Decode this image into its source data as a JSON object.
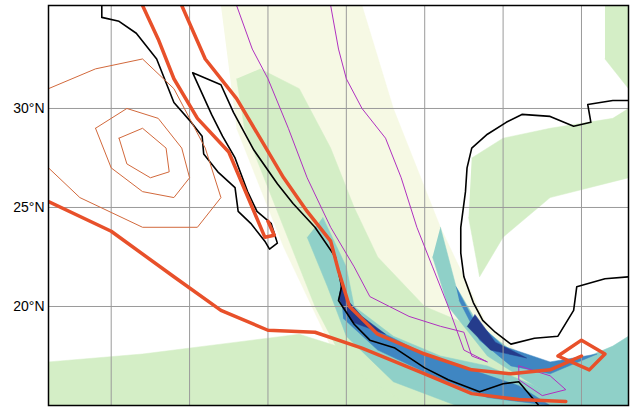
{
  "chart_data": {
    "type": "map",
    "xlim": [
      -124,
      -87
    ],
    "ylim": [
      15,
      35.2
    ],
    "xticks": [
      -120,
      -115,
      -110,
      -105,
      -100,
      -95,
      -90
    ],
    "yticks": [
      {
        "value": 20,
        "label": "20°N"
      },
      {
        "value": 25,
        "label": "25°N"
      },
      {
        "value": 30,
        "label": "30°N"
      }
    ],
    "grid": true,
    "tick_labels": "y",
    "shading": [
      {
        "color": "#f6f9e4",
        "points": [
          [
            -113,
            35.2
          ],
          [
            -104,
            35.2
          ],
          [
            -102,
            30
          ],
          [
            -99,
            24
          ],
          [
            -96,
            19
          ],
          [
            -93,
            17
          ],
          [
            -90,
            15
          ],
          [
            -100,
            15
          ],
          [
            -106,
            18
          ],
          [
            -109,
            23
          ],
          [
            -112,
            29
          ]
        ]
      },
      {
        "color": "#d4eec6",
        "points": [
          [
            -124,
            15
          ],
          [
            -124,
            17.2
          ],
          [
            -118,
            17.6
          ],
          [
            -112,
            18.2
          ],
          [
            -108,
            18.6
          ],
          [
            -104,
            17.6
          ],
          [
            -100,
            16.2
          ],
          [
            -96,
            15.4
          ],
          [
            -92,
            15
          ]
        ]
      },
      {
        "color": "#d4eec6",
        "points": [
          [
            -110.5,
            32
          ],
          [
            -108,
            31
          ],
          [
            -106,
            28
          ],
          [
            -104.5,
            25
          ],
          [
            -103,
            22.5
          ],
          [
            -100,
            20
          ],
          [
            -97,
            19
          ],
          [
            -94,
            17
          ],
          [
            -92,
            16
          ],
          [
            -91,
            15
          ],
          [
            -101,
            15
          ],
          [
            -105,
            17
          ],
          [
            -107,
            20
          ],
          [
            -108.5,
            23
          ],
          [
            -110,
            26
          ],
          [
            -111.5,
            29
          ],
          [
            -112,
            31.5
          ]
        ]
      },
      {
        "color": "#d4eec6",
        "points": [
          [
            -97,
            27.5
          ],
          [
            -95,
            28.5
          ],
          [
            -92,
            29
          ],
          [
            -88,
            29.5
          ],
          [
            -87,
            30
          ],
          [
            -87,
            26.5
          ],
          [
            -92,
            25.5
          ],
          [
            -95,
            23.5
          ],
          [
            -96.5,
            21.5
          ],
          [
            -97.2,
            24.5
          ]
        ]
      },
      {
        "color": "#d4eec6",
        "points": [
          [
            -88.5,
            35.2
          ],
          [
            -87,
            35.2
          ],
          [
            -87,
            31
          ],
          [
            -88.5,
            32.5
          ]
        ]
      },
      {
        "color": "#8fd0c8",
        "points": [
          [
            -106.5,
            24.5
          ],
          [
            -105,
            22
          ],
          [
            -104.5,
            20
          ],
          [
            -102,
            18.5
          ],
          [
            -99,
            17.5
          ],
          [
            -96,
            17
          ],
          [
            -93,
            16
          ],
          [
            -91,
            15
          ],
          [
            -98,
            15
          ],
          [
            -102,
            16.2
          ],
          [
            -105,
            18.5
          ],
          [
            -106.2,
            21
          ],
          [
            -107.5,
            23.5
          ]
        ]
      },
      {
        "color": "#8fd0c8",
        "points": [
          [
            -99,
            24
          ],
          [
            -98,
            21
          ],
          [
            -96.5,
            19
          ],
          [
            -94,
            17.5
          ],
          [
            -91,
            17
          ],
          [
            -88,
            18
          ],
          [
            -87,
            18.5
          ],
          [
            -87,
            15
          ],
          [
            -91,
            15
          ],
          [
            -93,
            16
          ],
          [
            -96,
            17.5
          ],
          [
            -98.5,
            20
          ],
          [
            -99.5,
            22.5
          ]
        ]
      },
      {
        "color": "#3f86c2",
        "points": [
          [
            -105.5,
            22
          ],
          [
            -104.8,
            20
          ],
          [
            -103,
            18.8
          ],
          [
            -100,
            17.6
          ],
          [
            -97,
            16.8
          ],
          [
            -94,
            16
          ],
          [
            -92,
            15
          ],
          [
            -96,
            15.4
          ],
          [
            -99.5,
            16.5
          ],
          [
            -103,
            17.8
          ],
          [
            -105.2,
            19.4
          ]
        ]
      },
      {
        "color": "#3f86c2",
        "points": [
          [
            -98,
            21
          ],
          [
            -97,
            19.5
          ],
          [
            -95,
            18
          ],
          [
            -92,
            17.2
          ],
          [
            -89,
            17.6
          ],
          [
            -92,
            16.6
          ],
          [
            -94.5,
            17
          ],
          [
            -96.5,
            18.3
          ],
          [
            -97.8,
            20.3
          ]
        ]
      },
      {
        "color": "#253c8c",
        "points": [
          [
            -105.3,
            21.3
          ],
          [
            -104.9,
            20.3
          ],
          [
            -104,
            19.5
          ],
          [
            -102.5,
            18.6
          ],
          [
            -104.6,
            19.2
          ],
          [
            -105.5,
            20.4
          ]
        ]
      },
      {
        "color": "#253c8c",
        "points": [
          [
            -96.8,
            19.6
          ],
          [
            -95.5,
            18.2
          ],
          [
            -93.5,
            17.4
          ],
          [
            -95.8,
            17.8
          ],
          [
            -97.3,
            19
          ]
        ]
      }
    ],
    "magenta_contours": [
      {
        "color": "#b030c0",
        "points": [
          [
            -112,
            35.2
          ],
          [
            -111,
            33
          ],
          [
            -110,
            31.5
          ],
          [
            -108.7,
            29
          ],
          [
            -107.5,
            26.5
          ],
          [
            -106,
            24
          ],
          [
            -104.5,
            22
          ],
          [
            -103.5,
            20.5
          ],
          [
            -101,
            19.5
          ],
          [
            -99,
            19
          ],
          [
            -97.5,
            18.7
          ],
          [
            -97,
            17.5
          ],
          [
            -96,
            17.2
          ],
          [
            -97.5,
            17.8
          ],
          [
            -98.5,
            20
          ],
          [
            -99.5,
            22
          ],
          [
            -100.5,
            24
          ],
          [
            -101.5,
            26.5
          ],
          [
            -102.5,
            28.5
          ],
          [
            -104,
            30
          ],
          [
            -105,
            31.5
          ],
          [
            -105.5,
            33
          ],
          [
            -106,
            35.2
          ]
        ]
      },
      {
        "color": "#b030c0",
        "points": [
          [
            -94,
            17
          ],
          [
            -92,
            16.5
          ],
          [
            -91,
            15.8
          ],
          [
            -92.5,
            15.5
          ],
          [
            -94,
            16.3
          ],
          [
            -94,
            17
          ]
        ]
      }
    ],
    "coastlines": [
      {
        "color": "#000000",
        "points": [
          [
            -120.6,
            35.2
          ],
          [
            -120.6,
            34.6
          ],
          [
            -119.5,
            34.4
          ],
          [
            -118.4,
            33.8
          ],
          [
            -117.1,
            32.5
          ],
          [
            -116.6,
            31.5
          ],
          [
            -116,
            30.3
          ],
          [
            -115,
            29.4
          ],
          [
            -114.2,
            28.6
          ],
          [
            -114.1,
            27.7
          ],
          [
            -113.2,
            26.8
          ],
          [
            -112.1,
            26
          ],
          [
            -111.9,
            24.8
          ],
          [
            -111.1,
            24.2
          ],
          [
            -110.2,
            23.3
          ],
          [
            -109.9,
            22.9
          ],
          [
            -109.4,
            23.2
          ],
          [
            -109.8,
            24.2
          ],
          [
            -110.7,
            24.8
          ],
          [
            -111.3,
            25.8
          ],
          [
            -112.1,
            27.5
          ],
          [
            -112.9,
            28.6
          ],
          [
            -113.6,
            29.7
          ],
          [
            -114.8,
            31.8
          ],
          [
            -113,
            31.2
          ],
          [
            -112.2,
            29.8
          ],
          [
            -110.9,
            27.9
          ],
          [
            -109.4,
            26.2
          ],
          [
            -108.4,
            25.2
          ],
          [
            -107,
            24
          ],
          [
            -105.7,
            22.5
          ],
          [
            -105.3,
            21
          ],
          [
            -105.5,
            20.3
          ],
          [
            -104.5,
            19.1
          ],
          [
            -103.5,
            18.3
          ],
          [
            -101.9,
            17.9
          ],
          [
            -100,
            16.9
          ],
          [
            -98.5,
            16.3
          ],
          [
            -96.5,
            15.7
          ],
          [
            -95,
            16.1
          ],
          [
            -94,
            16.2
          ],
          [
            -92.3,
            14.6
          ],
          [
            -91.5,
            14
          ]
        ]
      },
      {
        "color": "#000000",
        "points": [
          [
            -87,
            21.5
          ],
          [
            -88.5,
            21.4
          ],
          [
            -90.3,
            21
          ],
          [
            -90.5,
            19.8
          ],
          [
            -91.5,
            18.5
          ],
          [
            -93,
            18.4
          ],
          [
            -94.5,
            18.1
          ],
          [
            -95.5,
            18.7
          ],
          [
            -96.3,
            19.3
          ],
          [
            -96.9,
            20.2
          ],
          [
            -97.5,
            21.5
          ],
          [
            -97.7,
            22.7
          ],
          [
            -97.7,
            24
          ],
          [
            -97.4,
            25.8
          ],
          [
            -97.3,
            27
          ],
          [
            -97,
            28
          ],
          [
            -96,
            28.7
          ],
          [
            -94.8,
            29.3
          ],
          [
            -93.8,
            29.7
          ],
          [
            -92,
            29.6
          ],
          [
            -90.5,
            29.1
          ],
          [
            -89.4,
            29.3
          ],
          [
            -89.6,
            30.2
          ],
          [
            -88,
            30.4
          ],
          [
            -87,
            30.4
          ]
        ]
      }
    ],
    "orange_contours": [
      {
        "color": "#d2693c",
        "line_style": "thin",
        "points": [
          [
            -124,
            31
          ],
          [
            -121,
            32
          ],
          [
            -118,
            32.5
          ],
          [
            -116,
            31
          ],
          [
            -114,
            28
          ],
          [
            -113,
            25.5
          ],
          [
            -114.5,
            24
          ],
          [
            -118,
            24
          ],
          [
            -122,
            25.5
          ],
          [
            -124,
            27
          ]
        ]
      },
      {
        "color": "#d2693c",
        "line_style": "thin",
        "points": [
          [
            -121,
            29
          ],
          [
            -119,
            30
          ],
          [
            -117,
            29.5
          ],
          [
            -115.5,
            28
          ],
          [
            -115,
            26.5
          ],
          [
            -116,
            25.5
          ],
          [
            -118,
            25.8
          ],
          [
            -120,
            27
          ],
          [
            -121,
            29
          ]
        ]
      },
      {
        "color": "#d2693c",
        "line_style": "thin",
        "points": [
          [
            -119.5,
            28.5
          ],
          [
            -118,
            29
          ],
          [
            -116.5,
            28
          ],
          [
            -116.3,
            26.8
          ],
          [
            -117.5,
            26.5
          ],
          [
            -119,
            27.2
          ],
          [
            -119.5,
            28.5
          ]
        ]
      },
      {
        "color": "#e8502a",
        "line_style": "bold",
        "points": [
          [
            -124,
            25.3
          ],
          [
            -120,
            23.8
          ],
          [
            -116,
            21.5
          ],
          [
            -113,
            19.8
          ],
          [
            -110,
            18.8
          ],
          [
            -107,
            18.7
          ],
          [
            -104,
            17.9
          ],
          [
            -100,
            16.6
          ],
          [
            -97,
            15.6
          ],
          [
            -94,
            15.3
          ],
          [
            -91,
            15.2
          ]
        ]
      },
      {
        "color": "#e8502a",
        "line_style": "bold",
        "points": [
          [
            -118,
            35.2
          ],
          [
            -117,
            33.5
          ],
          [
            -116,
            31.5
          ],
          [
            -114.5,
            29.5
          ],
          [
            -112.5,
            27.8
          ],
          [
            -111,
            25
          ],
          [
            -110.2,
            23.5
          ],
          [
            -109.6,
            23.6
          ],
          [
            -110,
            24.3
          ]
        ]
      },
      {
        "color": "#e8502a",
        "line_style": "bold",
        "points": [
          [
            -115.5,
            35.2
          ],
          [
            -114,
            32.5
          ],
          [
            -112,
            30.5
          ],
          [
            -110.5,
            28.5
          ],
          [
            -109,
            26.5
          ],
          [
            -107.5,
            24.8
          ],
          [
            -106,
            23.3
          ],
          [
            -105.5,
            21.8
          ],
          [
            -104.8,
            20
          ],
          [
            -103,
            18.6
          ],
          [
            -100,
            17.6
          ],
          [
            -97,
            16.8
          ],
          [
            -94.5,
            16.6
          ],
          [
            -92,
            16.8
          ],
          [
            -90,
            17.5
          ]
        ]
      },
      {
        "color": "#e8502a",
        "line_style": "bold",
        "points": [
          [
            -91.5,
            17.5
          ],
          [
            -90,
            18.3
          ],
          [
            -88.5,
            17.6
          ],
          [
            -89.5,
            16.8
          ],
          [
            -91.5,
            17.5
          ]
        ]
      }
    ]
  }
}
